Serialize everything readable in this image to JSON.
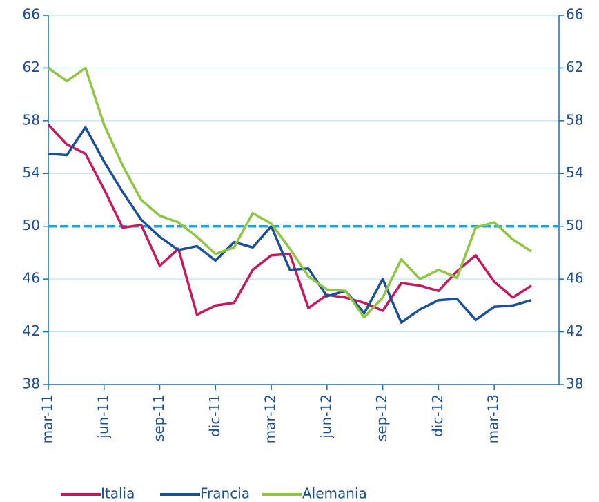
{
  "chart_data": {
    "type": "line",
    "categories": [
      "mar-11",
      null,
      null,
      "jun-11",
      null,
      null,
      "sep-11",
      null,
      null,
      "dic-11",
      null,
      null,
      "mar-12",
      null,
      null,
      "jun-12",
      null,
      null,
      "sep-12",
      null,
      null,
      "dic-12",
      null,
      null,
      "mar-13",
      null,
      null
    ],
    "series": [
      {
        "name": "Italia",
        "color": "#c8175e",
        "values": [
          57.7,
          56.2,
          55.5,
          52.8,
          49.9,
          50.1,
          47.0,
          48.3,
          43.3,
          44.0,
          44.2,
          46.7,
          47.8,
          47.9,
          43.8,
          44.8,
          44.6,
          44.2,
          43.6,
          45.7,
          45.5,
          45.1,
          46.6,
          47.8,
          45.8,
          44.6,
          45.5
        ]
      },
      {
        "name": "Francia",
        "color": "#1a4f9a",
        "values": [
          55.5,
          55.4,
          57.5,
          54.9,
          52.6,
          50.5,
          49.2,
          48.2,
          48.5,
          47.4,
          48.8,
          48.4,
          50.0,
          46.7,
          46.8,
          44.7,
          45.1,
          43.4,
          46.0,
          42.7,
          43.7,
          44.4,
          44.5,
          42.9,
          43.9,
          44.0,
          44.4
        ]
      },
      {
        "name": "Alemania",
        "color": "#8dc63f",
        "values": [
          62.0,
          61.0,
          62.0,
          57.7,
          54.6,
          52.0,
          50.8,
          50.3,
          49.2,
          47.9,
          48.4,
          51.0,
          50.2,
          48.3,
          46.2,
          45.2,
          45.1,
          43.1,
          44.6,
          47.5,
          46.0,
          46.7,
          46.1,
          49.9,
          50.3,
          49.0,
          48.1
        ]
      }
    ],
    "reference_line": {
      "value": 50,
      "color": "#2aa0dc"
    },
    "ylim": [
      38,
      66
    ],
    "yticks": [
      38,
      42,
      46,
      50,
      54,
      58,
      62,
      66
    ],
    "y2lim": [
      38,
      66
    ],
    "y2ticks": [
      38,
      42,
      46,
      50,
      54,
      58,
      62,
      66
    ],
    "grid": true,
    "legend": "bottom"
  }
}
